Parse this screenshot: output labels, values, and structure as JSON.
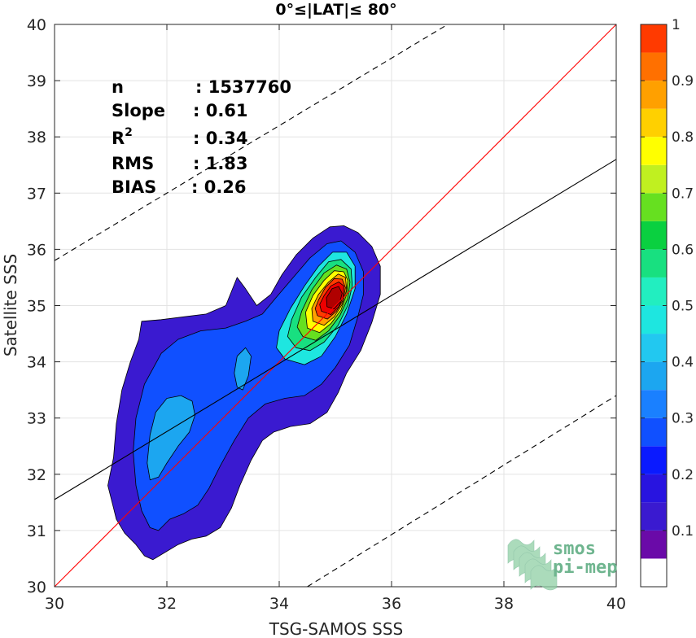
{
  "chart_data": {
    "type": "heatmap",
    "title": "0°≤|LAT|≤ 80°",
    "xlabel": "TSG-SAMOS SSS",
    "ylabel": "Satellite SSS",
    "xlim": [
      30,
      40
    ],
    "ylim": [
      30,
      40
    ],
    "xticks": [
      "30",
      "32",
      "34",
      "36",
      "38",
      "40"
    ],
    "yticks": [
      "30",
      "31",
      "32",
      "33",
      "34",
      "35",
      "36",
      "37",
      "38",
      "39",
      "40"
    ],
    "grid": true,
    "stats": [
      {
        "label": "n",
        "value": ": 1537760"
      },
      {
        "label": "Slope",
        "value": ": 0.61"
      },
      {
        "label": "R",
        "sup": "2",
        "value": ": 0.34"
      },
      {
        "label": "RMS",
        "value": ": 1.83"
      },
      {
        "label": "BIAS",
        "value": ": 0.26"
      }
    ],
    "lines": [
      {
        "name": "one-to-one",
        "color": "#ff0000",
        "style": "solid",
        "points": [
          [
            30,
            30
          ],
          [
            40,
            40
          ]
        ]
      },
      {
        "name": "regression",
        "color": "#000000",
        "style": "solid",
        "points": [
          [
            30,
            31.55
          ],
          [
            40,
            37.6
          ]
        ]
      },
      {
        "name": "upper-bound",
        "color": "#000000",
        "style": "dashed",
        "points": [
          [
            30,
            35.8
          ],
          [
            37,
            40
          ]
        ]
      },
      {
        "name": "lower-bound",
        "color": "#000000",
        "style": "dashed",
        "points": [
          [
            34.5,
            30
          ],
          [
            40,
            33.4
          ]
        ]
      }
    ],
    "density_peak": {
      "x": 35.0,
      "y": 35.0,
      "value": 1.0
    },
    "colorbar": {
      "range": [
        0,
        1
      ],
      "tick_labels": [
        "0.1",
        "0.2",
        "0.3",
        "0.4",
        "0.5",
        "0.6",
        "0.7",
        "0.8",
        "0.9",
        "1"
      ],
      "tick_values": [
        0.1,
        0.2,
        0.3,
        0.4,
        0.5,
        0.6,
        0.7,
        0.8,
        0.9,
        1.0
      ],
      "levels": [
        0.0,
        0.05,
        0.1,
        0.15,
        0.2,
        0.25,
        0.3,
        0.35,
        0.4,
        0.45,
        0.5,
        0.55,
        0.6,
        0.65,
        0.7,
        0.75,
        0.8,
        0.85,
        0.9,
        0.95,
        1.0
      ],
      "colors": [
        "#ffffff",
        "#6a0aa8",
        "#3a1ad0",
        "#2814e0",
        "#0a1aff",
        "#1050ff",
        "#1a80ff",
        "#1ca6f0",
        "#22c8f0",
        "#1ee6e0",
        "#22eec0",
        "#18e080",
        "#0ad040",
        "#66e020",
        "#c0f020",
        "#ffff00",
        "#ffd000",
        "#ffa000",
        "#ff7000",
        "#ff3a00",
        "#ee0000",
        "#b00000"
      ]
    },
    "contours": [
      {
        "level": 0.1,
        "color": "#3a1ad0",
        "points": [
          [
            31.05,
            31.4
          ],
          [
            31.1,
            31.2
          ],
          [
            31.25,
            30.95
          ],
          [
            31.45,
            30.75
          ],
          [
            31.6,
            30.55
          ],
          [
            31.75,
            30.48
          ],
          [
            31.95,
            30.6
          ],
          [
            32.2,
            30.75
          ],
          [
            32.45,
            30.85
          ],
          [
            32.7,
            30.9
          ],
          [
            32.95,
            31.05
          ],
          [
            33.15,
            31.4
          ],
          [
            33.3,
            31.8
          ],
          [
            33.5,
            32.25
          ],
          [
            33.7,
            32.6
          ],
          [
            33.9,
            32.75
          ],
          [
            34.2,
            32.85
          ],
          [
            34.55,
            32.9
          ],
          [
            34.85,
            33.1
          ],
          [
            35.05,
            33.45
          ],
          [
            35.2,
            33.8
          ],
          [
            35.45,
            34.2
          ],
          [
            35.65,
            34.7
          ],
          [
            35.8,
            35.2
          ],
          [
            35.8,
            35.7
          ],
          [
            35.65,
            36.05
          ],
          [
            35.4,
            36.3
          ],
          [
            35.15,
            36.42
          ],
          [
            34.9,
            36.4
          ],
          [
            34.6,
            36.2
          ],
          [
            34.3,
            35.9
          ],
          [
            34.05,
            35.55
          ],
          [
            33.85,
            35.2
          ],
          [
            33.6,
            35.0
          ],
          [
            33.4,
            35.3
          ],
          [
            33.25,
            35.5
          ],
          [
            33.05,
            35.0
          ],
          [
            32.7,
            34.85
          ],
          [
            32.3,
            34.8
          ],
          [
            31.9,
            34.75
          ],
          [
            31.55,
            34.72
          ],
          [
            31.5,
            34.4
          ],
          [
            31.35,
            34.0
          ],
          [
            31.2,
            33.5
          ],
          [
            31.1,
            32.9
          ],
          [
            31.05,
            32.3
          ],
          [
            30.95,
            31.8
          ]
        ]
      },
      {
        "level": 0.2,
        "color": "#1050ff",
        "points": [
          [
            31.45,
            31.8
          ],
          [
            31.55,
            31.35
          ],
          [
            31.7,
            31.05
          ],
          [
            31.85,
            31.0
          ],
          [
            32.05,
            31.2
          ],
          [
            32.3,
            31.3
          ],
          [
            32.55,
            31.45
          ],
          [
            32.75,
            31.75
          ],
          [
            32.95,
            32.15
          ],
          [
            33.2,
            32.6
          ],
          [
            33.45,
            33.0
          ],
          [
            33.75,
            33.25
          ],
          [
            34.1,
            33.35
          ],
          [
            34.45,
            33.4
          ],
          [
            34.75,
            33.6
          ],
          [
            35.0,
            33.9
          ],
          [
            35.25,
            34.3
          ],
          [
            35.4,
            34.8
          ],
          [
            35.5,
            35.2
          ],
          [
            35.5,
            35.6
          ],
          [
            35.35,
            35.95
          ],
          [
            35.1,
            36.15
          ],
          [
            34.85,
            36.1
          ],
          [
            34.55,
            35.85
          ],
          [
            34.25,
            35.5
          ],
          [
            33.95,
            35.15
          ],
          [
            33.7,
            34.85
          ],
          [
            33.4,
            34.72
          ],
          [
            33.05,
            34.6
          ],
          [
            32.6,
            34.55
          ],
          [
            32.2,
            34.4
          ],
          [
            31.9,
            34.15
          ],
          [
            31.6,
            33.6
          ],
          [
            31.45,
            33.0
          ],
          [
            31.4,
            32.4
          ]
        ]
      },
      {
        "level": 0.3,
        "color": "#1ca6f0",
        "points": [
          [
            31.65,
            32.2
          ],
          [
            31.7,
            31.9
          ],
          [
            31.85,
            31.95
          ],
          [
            32.0,
            32.2
          ],
          [
            32.2,
            32.5
          ],
          [
            32.4,
            32.75
          ],
          [
            32.5,
            33.05
          ],
          [
            32.45,
            33.3
          ],
          [
            32.25,
            33.4
          ],
          [
            32.0,
            33.35
          ],
          [
            31.8,
            33.1
          ],
          [
            31.7,
            32.7
          ]
        ]
      },
      {
        "level": 0.3,
        "color": "#1ca6f0",
        "points": [
          [
            33.25,
            33.55
          ],
          [
            33.35,
            33.5
          ],
          [
            33.45,
            33.75
          ],
          [
            33.5,
            34.1
          ],
          [
            33.4,
            34.25
          ],
          [
            33.25,
            34.1
          ],
          [
            33.2,
            33.8
          ]
        ]
      },
      {
        "level": 0.4,
        "color": "#1ee6e0",
        "points": [
          [
            34.1,
            34.05
          ],
          [
            34.45,
            33.95
          ],
          [
            34.75,
            34.1
          ],
          [
            35.0,
            34.45
          ],
          [
            35.2,
            34.85
          ],
          [
            35.35,
            35.3
          ],
          [
            35.35,
            35.7
          ],
          [
            35.2,
            35.95
          ],
          [
            34.95,
            35.95
          ],
          [
            34.7,
            35.7
          ],
          [
            34.45,
            35.35
          ],
          [
            34.2,
            34.95
          ],
          [
            34.0,
            34.55
          ],
          [
            33.95,
            34.25
          ]
        ]
      },
      {
        "level": 0.5,
        "color": "#18e080",
        "points": [
          [
            34.3,
            34.25
          ],
          [
            34.55,
            34.2
          ],
          [
            34.8,
            34.35
          ],
          [
            35.05,
            34.65
          ],
          [
            35.22,
            35.0
          ],
          [
            35.3,
            35.35
          ],
          [
            35.28,
            35.65
          ],
          [
            35.1,
            35.82
          ],
          [
            34.88,
            35.78
          ],
          [
            34.65,
            35.5
          ],
          [
            34.4,
            35.15
          ],
          [
            34.22,
            34.75
          ],
          [
            34.15,
            34.45
          ]
        ]
      },
      {
        "level": 0.6,
        "color": "#66e020",
        "points": [
          [
            34.42,
            34.45
          ],
          [
            34.65,
            34.38
          ],
          [
            34.88,
            34.55
          ],
          [
            35.08,
            34.82
          ],
          [
            35.22,
            35.12
          ],
          [
            35.26,
            35.42
          ],
          [
            35.2,
            35.65
          ],
          [
            35.02,
            35.72
          ],
          [
            34.8,
            35.58
          ],
          [
            34.58,
            35.28
          ],
          [
            34.4,
            34.9
          ],
          [
            34.32,
            34.62
          ]
        ]
      },
      {
        "level": 0.7,
        "color": "#ffff00",
        "points": [
          [
            34.5,
            34.6
          ],
          [
            34.72,
            34.52
          ],
          [
            34.92,
            34.68
          ],
          [
            35.1,
            34.92
          ],
          [
            35.2,
            35.2
          ],
          [
            35.22,
            35.45
          ],
          [
            35.15,
            35.6
          ],
          [
            34.98,
            35.62
          ],
          [
            34.8,
            35.45
          ],
          [
            34.6,
            35.18
          ],
          [
            34.47,
            34.88
          ]
        ]
      },
      {
        "level": 0.8,
        "color": "#ffa000",
        "points": [
          [
            34.6,
            34.72
          ],
          [
            34.8,
            34.65
          ],
          [
            34.98,
            34.8
          ],
          [
            35.12,
            35.02
          ],
          [
            35.2,
            35.28
          ],
          [
            35.18,
            35.5
          ],
          [
            35.05,
            35.56
          ],
          [
            34.88,
            35.42
          ],
          [
            34.7,
            35.2
          ],
          [
            34.58,
            34.95
          ]
        ]
      },
      {
        "level": 0.9,
        "color": "#ff3a00",
        "points": [
          [
            34.68,
            34.82
          ],
          [
            34.86,
            34.76
          ],
          [
            35.02,
            34.9
          ],
          [
            35.14,
            35.1
          ],
          [
            35.18,
            35.32
          ],
          [
            35.12,
            35.47
          ],
          [
            34.98,
            35.48
          ],
          [
            34.82,
            35.32
          ],
          [
            34.7,
            35.1
          ],
          [
            34.64,
            34.95
          ]
        ]
      },
      {
        "level": 0.95,
        "color": "#ee0000",
        "points": [
          [
            34.75,
            34.9
          ],
          [
            34.92,
            34.84
          ],
          [
            35.06,
            34.98
          ],
          [
            35.14,
            35.16
          ],
          [
            35.15,
            35.35
          ],
          [
            35.06,
            35.42
          ],
          [
            34.92,
            35.35
          ],
          [
            34.8,
            35.18
          ],
          [
            34.72,
            35.02
          ]
        ]
      },
      {
        "level": 1.0,
        "color": "#b00000",
        "points": [
          [
            34.85,
            34.98
          ],
          [
            34.98,
            34.94
          ],
          [
            35.08,
            35.06
          ],
          [
            35.12,
            35.22
          ],
          [
            35.06,
            35.34
          ],
          [
            34.94,
            35.3
          ],
          [
            34.84,
            35.14
          ]
        ]
      }
    ],
    "logo": {
      "line1": "smos",
      "line2": "pi-mep"
    }
  }
}
